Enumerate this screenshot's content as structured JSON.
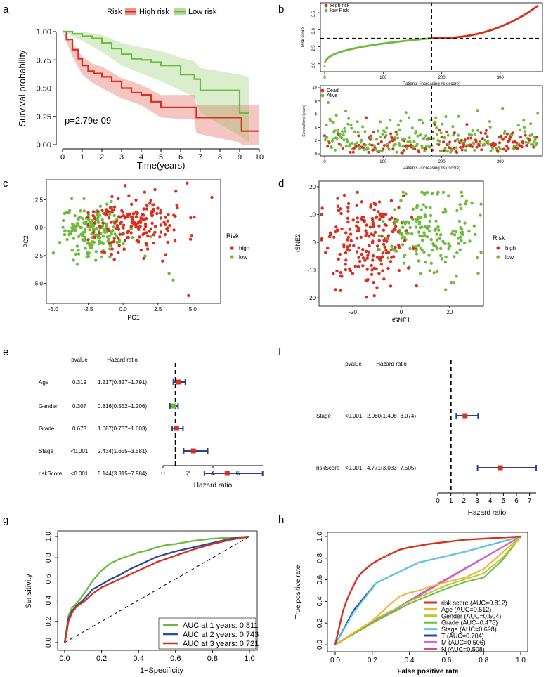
{
  "panels": {
    "a": "a",
    "b": "b",
    "c": "c",
    "d": "d",
    "e": "e",
    "f": "f",
    "g": "g",
    "h": "h"
  },
  "colors": {
    "high": "#d7301f",
    "low": "#6cbb3c",
    "navy": "#2b3f8f",
    "black": "#000000"
  },
  "chart_data": {
    "km": {
      "type": "line",
      "legend_title": "Risk",
      "legend": [
        "High risk",
        "Low risk"
      ],
      "xlabel": "Time(years)",
      "ylabel": "Survival probability",
      "pvalue": "p=2.79e-09",
      "xlim": [
        0,
        10
      ],
      "ylim": [
        0,
        1
      ],
      "xticks": [
        "0",
        "1",
        "2",
        "3",
        "4",
        "5",
        "6",
        "7",
        "8",
        "9",
        "10"
      ],
      "yticks": [
        "0.00",
        "0.25",
        "0.50",
        "0.75",
        "1.00"
      ],
      "series": [
        {
          "name": "High risk",
          "x": [
            0,
            0.2,
            0.5,
            0.8,
            1.0,
            1.3,
            1.6,
            2.0,
            2.5,
            3.0,
            3.5,
            4.0,
            4.5,
            5.0,
            6.7,
            6.8,
            9.1,
            10.0
          ],
          "y": [
            1,
            0.93,
            0.84,
            0.76,
            0.7,
            0.65,
            0.63,
            0.6,
            0.56,
            0.5,
            0.46,
            0.44,
            0.38,
            0.33,
            0.33,
            0.24,
            0.12,
            0.12
          ]
        },
        {
          "name": "Low risk",
          "x": [
            0,
            0.5,
            1.0,
            1.5,
            2.0,
            2.5,
            3.0,
            3.5,
            4.0,
            4.5,
            5.0,
            6.0,
            6.7,
            7.0,
            8.6,
            9.0,
            9.5
          ],
          "y": [
            1,
            0.98,
            0.96,
            0.94,
            0.9,
            0.85,
            0.8,
            0.76,
            0.75,
            0.73,
            0.7,
            0.62,
            0.58,
            0.48,
            0.48,
            0.28,
            0.28
          ]
        }
      ]
    },
    "riskscore": {
      "type": "scatter",
      "legend": [
        "High risk",
        "low Risk"
      ],
      "xlabel": "Patients (increasing risk score)",
      "ylabel": "Risk score",
      "xticks": [
        "0",
        "100",
        "200",
        "300"
      ],
      "yticks": [
        "2.0",
        "2.5",
        "3.0",
        "3.5"
      ],
      "cutoff_patient": 183,
      "cutoff_score": 2.75,
      "n": 365,
      "ylim": [
        1.85,
        3.75
      ]
    },
    "survtime": {
      "type": "scatter",
      "legend": [
        "Dead",
        "Alive"
      ],
      "xlabel": "Patients (increasing risk score)",
      "ylabel": "Survival time (years)",
      "xticks": [
        "0",
        "100",
        "200",
        "300"
      ],
      "yticks": [
        "0",
        "2",
        "4",
        "6",
        "8",
        "10"
      ],
      "ylim": [
        0,
        10
      ]
    },
    "pca": {
      "type": "scatter",
      "xlabel": "PC1",
      "ylabel": "PC2",
      "xticks": [
        "-5.0",
        "-2.5",
        "0.0",
        "2.5",
        "5.0"
      ],
      "yticks": [
        "-5.0",
        "-2.5",
        "0.0",
        "2.5"
      ],
      "xlim": [
        -5.5,
        7
      ],
      "ylim": [
        -6.8,
        4.3
      ],
      "legend_title": "Risk",
      "legend": [
        "high",
        "low"
      ]
    },
    "tsne": {
      "type": "scatter",
      "xlabel": "tSNE1",
      "ylabel": "tSNE2",
      "xticks": [
        "-20",
        "0",
        "20"
      ],
      "yticks": [
        "-20",
        "-10",
        "0",
        "10",
        "20"
      ],
      "xlim": [
        -34,
        34
      ],
      "ylim": [
        -23,
        22
      ],
      "legend_title": "Risk",
      "legend": [
        "high",
        "low"
      ]
    },
    "forest_uni": {
      "type": "forest",
      "header_p": "pvalue",
      "header_hr": "Hazard ratio",
      "xlabel": "Hazard ratio",
      "xticks": [
        "0",
        "2",
        "4",
        "6"
      ],
      "xlim": [
        0,
        8
      ],
      "rows": [
        {
          "name": "Age",
          "p": "0.319",
          "text": "1.217(0.827−1.791)",
          "hr": 1.217,
          "lo": 0.827,
          "hi": 1.791
        },
        {
          "name": "Gender",
          "p": "0.307",
          "text": "0.816(0.552−1.206)",
          "hr": 0.816,
          "lo": 0.552,
          "hi": 1.206
        },
        {
          "name": "Grade",
          "p": "0.673",
          "text": "1.087(0.737−1.603)",
          "hr": 1.087,
          "lo": 0.737,
          "hi": 1.603
        },
        {
          "name": "Stage",
          "p": "<0.001",
          "text": "2.434(1.655−3.581)",
          "hr": 2.434,
          "lo": 1.655,
          "hi": 3.581
        },
        {
          "name": "riskScore",
          "p": "<0.001",
          "text": "5.144(3.315−7.984)",
          "hr": 5.144,
          "lo": 3.315,
          "hi": 7.984
        }
      ]
    },
    "forest_multi": {
      "type": "forest",
      "header_p": "pvalue",
      "header_hr": "Hazard ratio",
      "xlabel": "Hazard ratio",
      "xticks": [
        "0",
        "1",
        "2",
        "3",
        "4",
        "5",
        "6",
        "7"
      ],
      "xlim": [
        0,
        7.5
      ],
      "rows": [
        {
          "name": "Stage",
          "p": "<0.001",
          "text": "2.080(1.408−3.074)",
          "hr": 2.08,
          "lo": 1.408,
          "hi": 3.074
        },
        {
          "name": "riskScore",
          "p": "<0.001",
          "text": "4.771(3.033−7.505)",
          "hr": 4.771,
          "lo": 3.033,
          "hi": 7.505
        }
      ]
    },
    "roc_time": {
      "type": "line",
      "xlabel": "1−Specificity",
      "ylabel": "Sensitivity",
      "xticks": [
        "0.0",
        "0.2",
        "0.4",
        "0.6",
        "0.8",
        "1.0"
      ],
      "yticks": [
        "0.0",
        "0.2",
        "0.4",
        "0.6",
        "0.8",
        "1.0"
      ],
      "series": [
        {
          "name": "AUC at 1 years: 0.811",
          "color": "#6cbb3c",
          "x": [
            0,
            0.01,
            0.02,
            0.04,
            0.06,
            0.08,
            0.1,
            0.12,
            0.15,
            0.2,
            0.25,
            0.3,
            0.35,
            0.4,
            0.45,
            0.5,
            0.55,
            0.6,
            0.7,
            0.8,
            0.9,
            1
          ],
          "y": [
            0,
            0.12,
            0.25,
            0.33,
            0.36,
            0.4,
            0.45,
            0.5,
            0.58,
            0.68,
            0.75,
            0.79,
            0.82,
            0.85,
            0.87,
            0.9,
            0.92,
            0.93,
            0.96,
            0.98,
            0.99,
            1
          ]
        },
        {
          "name": "AUC at 2 years: 0.743",
          "color": "#2b4ba0",
          "x": [
            0,
            0.01,
            0.02,
            0.04,
            0.06,
            0.08,
            0.1,
            0.12,
            0.15,
            0.2,
            0.25,
            0.3,
            0.35,
            0.4,
            0.45,
            0.5,
            0.6,
            0.7,
            0.8,
            0.9,
            1
          ],
          "y": [
            0,
            0.1,
            0.22,
            0.3,
            0.34,
            0.37,
            0.4,
            0.44,
            0.5,
            0.55,
            0.6,
            0.64,
            0.69,
            0.73,
            0.77,
            0.81,
            0.86,
            0.9,
            0.94,
            0.98,
            1
          ]
        },
        {
          "name": "AUC at 3 years: 0.721",
          "color": "#d7301f",
          "x": [
            0,
            0.01,
            0.02,
            0.04,
            0.06,
            0.08,
            0.1,
            0.12,
            0.15,
            0.2,
            0.25,
            0.3,
            0.35,
            0.4,
            0.45,
            0.5,
            0.6,
            0.7,
            0.8,
            0.9,
            1
          ],
          "y": [
            0,
            0.08,
            0.2,
            0.28,
            0.33,
            0.36,
            0.38,
            0.41,
            0.46,
            0.52,
            0.56,
            0.6,
            0.64,
            0.68,
            0.72,
            0.76,
            0.82,
            0.88,
            0.93,
            0.97,
            1
          ]
        }
      ]
    },
    "roc_factors": {
      "type": "line",
      "xlabel": "False positive rate",
      "ylabel": "True positive rate",
      "xticks": [
        "0.0",
        "0.2",
        "0.4",
        "0.6",
        "0.8",
        "1.0"
      ],
      "yticks": [
        "0.0",
        "0.2",
        "0.4",
        "0.6",
        "0.8",
        "1.0"
      ],
      "series": [
        {
          "name": "risk score (AUC=0.812)",
          "color": "#d7301f",
          "x": [
            0,
            0.02,
            0.04,
            0.06,
            0.08,
            0.1,
            0.12,
            0.15,
            0.2,
            0.25,
            0.3,
            0.35,
            0.4,
            0.5,
            0.6,
            0.7,
            0.8,
            0.9,
            1
          ],
          "y": [
            0,
            0.15,
            0.3,
            0.4,
            0.48,
            0.55,
            0.62,
            0.68,
            0.75,
            0.8,
            0.84,
            0.88,
            0.9,
            0.93,
            0.95,
            0.97,
            0.98,
            0.99,
            1
          ]
        },
        {
          "name": "Age (AUC=0.512)",
          "color": "#f0b429",
          "x": [
            0,
            0.2,
            0.3,
            0.35,
            0.4,
            0.45,
            0.5,
            0.6,
            0.7,
            0.8,
            0.9,
            1
          ],
          "y": [
            0,
            0.22,
            0.38,
            0.45,
            0.48,
            0.5,
            0.53,
            0.58,
            0.62,
            0.7,
            0.85,
            1
          ]
        },
        {
          "name": "Gender (AUC=0.504)",
          "color": "#b1cc2e",
          "x": [
            0,
            0.2,
            0.4,
            0.6,
            0.8,
            0.9,
            1
          ],
          "y": [
            0,
            0.22,
            0.4,
            0.55,
            0.66,
            0.8,
            1
          ]
        },
        {
          "name": "Grade (AUC=0.478)",
          "color": "#6cbb3c",
          "x": [
            0,
            0.2,
            0.4,
            0.6,
            0.7,
            0.8,
            0.9,
            1
          ],
          "y": [
            0,
            0.2,
            0.38,
            0.52,
            0.58,
            0.62,
            0.78,
            1
          ]
        },
        {
          "name": "Stage (AUC=0.698)",
          "color": "#5ac8e6",
          "x": [
            0,
            0.1,
            0.2,
            0.22,
            0.45,
            0.7,
            1
          ],
          "y": [
            0,
            0.3,
            0.52,
            0.57,
            0.76,
            0.86,
            1
          ]
        },
        {
          "name": "T (AUC=0.704)",
          "color": "#2b4ba0",
          "x": [
            0,
            0.1,
            0.22,
            0.45,
            0.7,
            1
          ],
          "y": [
            0,
            0.32,
            0.57,
            0.76,
            0.86,
            1
          ]
        },
        {
          "name": "M (AUC=0.506)",
          "color": "#c471d3",
          "x": [
            0,
            1
          ],
          "y": [
            0,
            1
          ]
        },
        {
          "name": "N (AUC=0.508)",
          "color": "#e0408c",
          "x": [
            0,
            0.5,
            1
          ],
          "y": [
            0,
            0.51,
            1
          ]
        }
      ]
    }
  }
}
